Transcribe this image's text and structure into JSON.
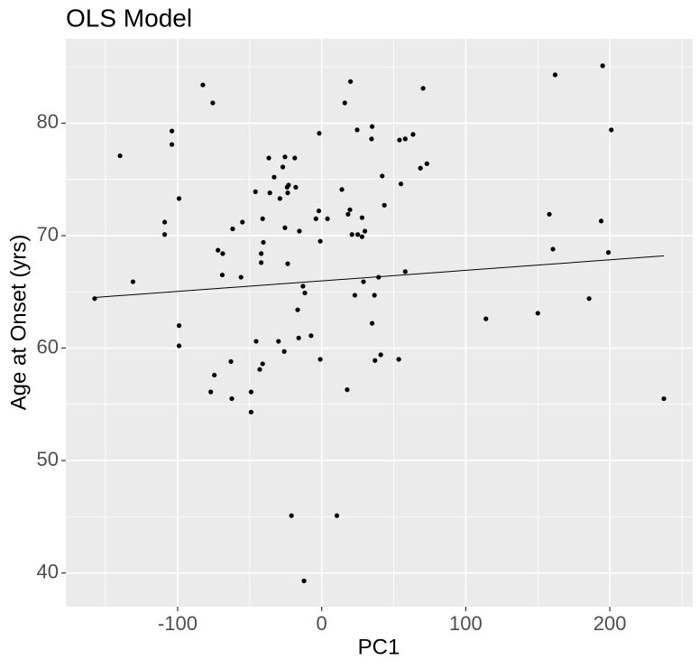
{
  "chart_data": {
    "type": "scatter",
    "title": "OLS Model",
    "x_label": "PC1",
    "y_label": "Age at Onset (yrs)",
    "x": [
      -157.6,
      -140,
      -131,
      -109,
      -109,
      -104,
      -104,
      -99,
      -99,
      -99,
      -82.5,
      -75.6,
      -77,
      -74.5,
      -72,
      -69,
      -68.7,
      -63,
      -62.4,
      -61.8,
      -55,
      -56,
      -49,
      -49,
      -46,
      -45.5,
      -42,
      -42,
      -41,
      -40.5,
      -41,
      -43,
      -36.7,
      -36,
      -33,
      -29,
      -30,
      -27,
      -25.5,
      -25.5,
      -26,
      -24,
      -23.6,
      -23,
      -23.6,
      -21,
      -18.7,
      -18,
      -16.7,
      -16,
      -15.5,
      -13,
      -11.7,
      -12.3,
      -7.4,
      -4,
      -2,
      -1.7,
      -1,
      -1,
      4,
      10.5,
      14,
      16,
      17.7,
      18.3,
      19.6,
      20,
      21,
      23,
      24.6,
      25,
      28,
      28,
      29,
      30,
      34.6,
      35,
      35,
      36.6,
      37,
      39.5,
      41,
      42,
      43.5,
      53.5,
      54,
      55,
      58,
      58,
      63.4,
      68.5,
      70.4,
      73,
      114,
      150,
      158,
      160.5,
      162,
      185.6,
      194,
      195,
      199,
      201,
      237.5
    ],
    "values": [
      64.4,
      77.1,
      65.9,
      71.2,
      70.1,
      79.3,
      78.1,
      73.3,
      62.0,
      60.2,
      83.4,
      81.8,
      56.1,
      57.6,
      68.7,
      66.5,
      68.4,
      58.8,
      55.5,
      70.6,
      71.2,
      66.3,
      56.1,
      54.3,
      73.9,
      60.6,
      68.4,
      67.6,
      71.5,
      69.4,
      58.6,
      58.1,
      76.9,
      73.8,
      75.2,
      73.3,
      60.6,
      76.1,
      77.0,
      70.7,
      59.7,
      74.3,
      73.8,
      74.5,
      67.5,
      45.1,
      76.9,
      74.3,
      63.4,
      60.9,
      70.4,
      65.5,
      64.9,
      39.3,
      61.1,
      71.5,
      72.2,
      79.1,
      69.5,
      59.0,
      71.5,
      45.1,
      74.1,
      81.8,
      56.3,
      71.9,
      72.3,
      83.7,
      70.1,
      64.7,
      79.4,
      70.1,
      71.6,
      69.9,
      65.9,
      70.4,
      78.6,
      79.7,
      62.2,
      64.7,
      58.9,
      66.3,
      59.4,
      75.3,
      72.7,
      59.0,
      78.5,
      74.6,
      78.6,
      66.8,
      79.0,
      76.0,
      83.1,
      76.4,
      62.6,
      63.1,
      71.9,
      68.8,
      84.3,
      64.4,
      71.3,
      85.1,
      68.5,
      79.4,
      55.5
    ],
    "color": "#000000",
    "fit_line": {
      "x": [
        -157.6,
        237.5
      ],
      "values": [
        64.5,
        68.2
      ],
      "color": "#000000"
    },
    "xlim": [
      -177.6,
      257.5
    ],
    "xticks": [
      -100,
      0,
      100,
      200
    ],
    "minor_xticks": [
      -150,
      -50,
      50,
      150,
      250
    ],
    "ylim": [
      37,
      87.5
    ],
    "yticks": [
      40,
      50,
      60,
      70,
      80
    ],
    "minor_yticks": [
      45,
      55,
      65,
      75,
      85
    ],
    "grid": true
  }
}
